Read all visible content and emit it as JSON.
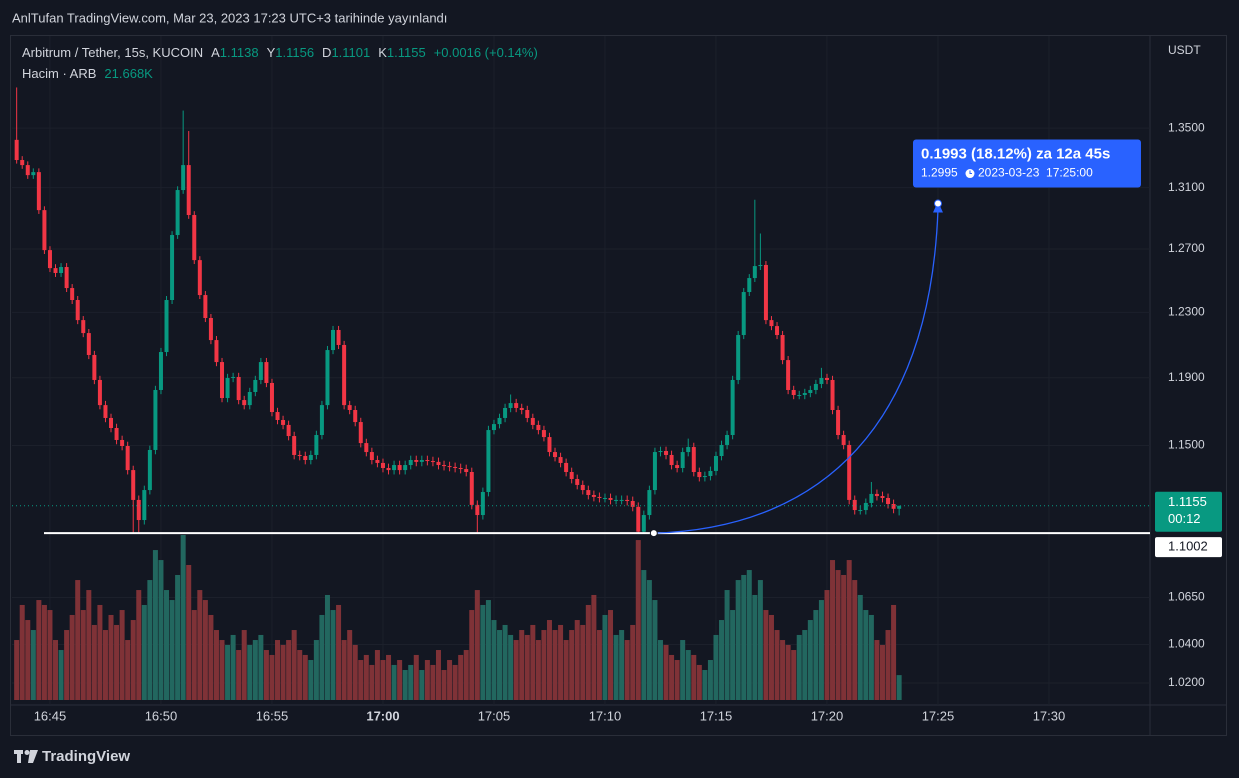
{
  "header": {
    "title": "AnlTufan TradingView.com, Mar 23, 2023 17:23 UTC+3 tarihinde yayınlandı"
  },
  "footer": {
    "brand": "TradingView"
  },
  "chart_data": {
    "type": "candlestick",
    "log_scale": true,
    "grid": true,
    "symbol": "Arbitrum / Tether, 15s, KUCOIN",
    "ohlc_letters": [
      "A",
      "Y",
      "D",
      "K"
    ],
    "change": "+0.0016 (+0.14%)",
    "volume_name": "Hacim · ARB",
    "volume_last_label": "21.668K",
    "currency": "USDT",
    "countdown": "00:12",
    "up_color": "#089981",
    "down_color": "#f23645",
    "volume_up_color": "#22675f",
    "volume_down_color": "#7f3237",
    "xlim": [
      1003.29,
      1054.55
    ],
    "ylim": [
      1.0087,
      1.415
    ],
    "xticks": [
      {
        "value": 1005,
        "label": "16:45"
      },
      {
        "value": 1010,
        "label": "16:50"
      },
      {
        "value": 1015,
        "label": "16:55"
      },
      {
        "value": 1020,
        "label": "17:00"
      },
      {
        "value": 1025,
        "label": "17:05"
      },
      {
        "value": 1030,
        "label": "17:10"
      },
      {
        "value": 1035,
        "label": "17:15"
      },
      {
        "value": 1040,
        "label": "17:20"
      },
      {
        "value": 1045,
        "label": "17:25"
      },
      {
        "value": 1050,
        "label": "17:30"
      }
    ],
    "yticks": [
      {
        "value": 1.35,
        "label": "1.3500"
      },
      {
        "value": 1.31,
        "label": "1.3100"
      },
      {
        "value": 1.27,
        "label": "1.2700"
      },
      {
        "value": 1.23,
        "label": "1.2300"
      },
      {
        "value": 1.19,
        "label": "1.1900"
      },
      {
        "value": 1.15,
        "label": "1.1500"
      },
      {
        "value": 1.065,
        "label": "1.0650"
      },
      {
        "value": 1.04,
        "label": "1.0400"
      },
      {
        "value": 1.02,
        "label": "1.0200"
      }
    ],
    "hline": 1.1002,
    "measure": {
      "from_x": 1032.2,
      "from_y": 1.1002,
      "to_x": 1045,
      "to_y": 1.2995,
      "text": "0.1993 (18.12%) za 12a 45s",
      "time": "2023-03-23  17:25:00"
    },
    "x": [
      1003.5,
      1003.75,
      1004,
      1004.25,
      1004.5,
      1004.75,
      1005,
      1005.25,
      1005.5,
      1005.75,
      1006,
      1006.25,
      1006.5,
      1006.75,
      1007,
      1007.25,
      1007.5,
      1007.75,
      1008,
      1008.25,
      1008.5,
      1008.75,
      1009,
      1009.25,
      1009.5,
      1009.75,
      1010,
      1010.25,
      1010.5,
      1010.75,
      1011,
      1011.25,
      1011.5,
      1011.75,
      1012,
      1012.25,
      1012.5,
      1012.75,
      1013,
      1013.25,
      1013.5,
      1013.75,
      1014,
      1014.25,
      1014.5,
      1014.75,
      1015,
      1015.25,
      1015.5,
      1015.75,
      1016,
      1016.25,
      1016.5,
      1016.75,
      1017,
      1017.25,
      1017.5,
      1017.75,
      1018,
      1018.25,
      1018.5,
      1018.75,
      1019,
      1019.25,
      1019.5,
      1019.75,
      1020,
      1020.25,
      1020.5,
      1020.75,
      1021,
      1021.25,
      1021.5,
      1021.75,
      1022,
      1022.25,
      1022.5,
      1022.75,
      1023,
      1023.25,
      1023.5,
      1023.75,
      1024,
      1024.25,
      1024.5,
      1024.75,
      1025,
      1025.25,
      1025.5,
      1025.75,
      1026,
      1026.25,
      1026.5,
      1026.75,
      1027,
      1027.25,
      1027.5,
      1027.75,
      1028,
      1028.25,
      1028.5,
      1028.75,
      1029,
      1029.25,
      1029.5,
      1029.75,
      1030,
      1030.25,
      1030.5,
      1030.75,
      1031,
      1031.25,
      1031.5,
      1031.75,
      1032,
      1032.25,
      1032.5,
      1032.75,
      1033,
      1033.25,
      1033.5,
      1033.75,
      1034,
      1034.25,
      1034.5,
      1034.75,
      1035,
      1035.25,
      1035.5,
      1035.75,
      1036,
      1036.25,
      1036.5,
      1036.75,
      1037,
      1037.25,
      1037.5,
      1037.75,
      1038,
      1038.25,
      1038.5,
      1038.75,
      1039,
      1039.25,
      1039.5,
      1039.75,
      1040,
      1040.25,
      1040.5,
      1040.75,
      1041,
      1041.25,
      1041.5,
      1041.75,
      1042,
      1042.25,
      1042.5,
      1042.75,
      1043,
      1043.25
    ],
    "ohlc": [
      [
        1.342,
        1.378,
        1.326,
        1.3284
      ],
      [
        1.3284,
        1.331,
        1.3225,
        1.325
      ],
      [
        1.325,
        1.3275,
        1.3158,
        1.3183
      ],
      [
        1.3183,
        1.3228,
        1.3158,
        1.3203
      ],
      [
        1.3203,
        1.3228,
        1.2927,
        1.2952
      ],
      [
        1.2952,
        1.2977,
        1.2668,
        1.2693
      ],
      [
        1.2693,
        1.2718,
        1.2553,
        1.2578
      ],
      [
        1.2578,
        1.2603,
        1.2522,
        1.2547
      ],
      [
        1.2547,
        1.261,
        1.2522,
        1.2585
      ],
      [
        1.2585,
        1.261,
        1.2427,
        1.2452
      ],
      [
        1.2452,
        1.2477,
        1.2352,
        1.2377
      ],
      [
        1.2377,
        1.2402,
        1.2227,
        1.2252
      ],
      [
        1.2252,
        1.2277,
        1.2147,
        1.2172
      ],
      [
        1.2172,
        1.2197,
        1.2013,
        1.2038
      ],
      [
        1.2038,
        1.2063,
        1.1862,
        1.1887
      ],
      [
        1.1887,
        1.1912,
        1.1712,
        1.1737
      ],
      [
        1.1737,
        1.1762,
        1.1636,
        1.1661
      ],
      [
        1.1661,
        1.1686,
        1.1577,
        1.1602
      ],
      [
        1.1602,
        1.1627,
        1.1507,
        1.1532
      ],
      [
        1.1532,
        1.1557,
        1.1472,
        1.1497
      ],
      [
        1.1497,
        1.1522,
        1.1333,
        1.1358
      ],
      [
        1.1358,
        1.1383,
        1.1002,
        1.1188
      ],
      [
        1.1188,
        1.1213,
        1.1002,
        1.1075
      ],
      [
        1.1075,
        1.1269,
        1.105,
        1.1244
      ],
      [
        1.1244,
        1.1499,
        1.1219,
        1.1474
      ],
      [
        1.1474,
        1.1852,
        1.1449,
        1.1827
      ],
      [
        1.1827,
        1.2081,
        1.1802,
        1.2056
      ],
      [
        1.2056,
        1.2402,
        1.2031,
        1.2377
      ],
      [
        1.2377,
        1.2815,
        1.2352,
        1.279
      ],
      [
        1.279,
        1.3109,
        1.2765,
        1.3084
      ],
      [
        1.3084,
        1.362,
        1.3059,
        1.325
      ],
      [
        1.325,
        1.348,
        1.2895,
        1.292
      ],
      [
        1.292,
        1.2945,
        1.2604,
        1.2629
      ],
      [
        1.2629,
        1.2654,
        1.2383,
        1.2408
      ],
      [
        1.2408,
        1.2433,
        1.224,
        1.2265
      ],
      [
        1.2265,
        1.229,
        1.2104,
        1.2129
      ],
      [
        1.2129,
        1.2154,
        1.197,
        1.1995
      ],
      [
        1.1995,
        1.202,
        1.1754,
        1.1779
      ],
      [
        1.1779,
        1.1924,
        1.1754,
        1.1899
      ],
      [
        1.1899,
        1.193,
        1.1874,
        1.1905
      ],
      [
        1.1905,
        1.193,
        1.1742,
        1.1767
      ],
      [
        1.1767,
        1.1792,
        1.1712,
        1.1737
      ],
      [
        1.1737,
        1.184,
        1.1712,
        1.1815
      ],
      [
        1.1815,
        1.1912,
        1.179,
        1.1887
      ],
      [
        1.1887,
        1.202,
        1.1862,
        1.1995
      ],
      [
        1.1995,
        1.202,
        1.1844,
        1.1869
      ],
      [
        1.1869,
        1.1894,
        1.1671,
        1.1696
      ],
      [
        1.1696,
        1.1721,
        1.1624,
        1.1649
      ],
      [
        1.1649,
        1.1674,
        1.1595,
        1.162
      ],
      [
        1.162,
        1.1645,
        1.153,
        1.1555
      ],
      [
        1.1555,
        1.158,
        1.142,
        1.1445
      ],
      [
        1.1445,
        1.147,
        1.1414,
        1.1439
      ],
      [
        1.1439,
        1.1464,
        1.1391,
        1.1416
      ],
      [
        1.1416,
        1.147,
        1.1391,
        1.1445
      ],
      [
        1.1445,
        1.1586,
        1.142,
        1.1561
      ],
      [
        1.1561,
        1.1762,
        1.1536,
        1.1737
      ],
      [
        1.1737,
        1.2093,
        1.1712,
        1.2068
      ],
      [
        1.2068,
        1.2216,
        1.2043,
        1.2191
      ],
      [
        1.2191,
        1.2216,
        1.2074,
        1.2099
      ],
      [
        1.2099,
        1.2124,
        1.1712,
        1.1737
      ],
      [
        1.1737,
        1.1762,
        1.1683,
        1.1708
      ],
      [
        1.1708,
        1.1733,
        1.1612,
        1.1637
      ],
      [
        1.1637,
        1.1662,
        1.1489,
        1.1514
      ],
      [
        1.1514,
        1.1539,
        1.1437,
        1.1462
      ],
      [
        1.1462,
        1.1487,
        1.1391,
        1.1416
      ],
      [
        1.1416,
        1.1441,
        1.1374,
        1.1399
      ],
      [
        1.1399,
        1.1424,
        1.1345,
        1.137
      ],
      [
        1.137,
        1.1395,
        1.1333,
        1.1358
      ],
      [
        1.1358,
        1.1412,
        1.1333,
        1.1387
      ],
      [
        1.1387,
        1.1412,
        1.1333,
        1.1358
      ],
      [
        1.1358,
        1.1412,
        1.1333,
        1.1387
      ],
      [
        1.1387,
        1.1441,
        1.1362,
        1.1416
      ],
      [
        1.1416,
        1.1441,
        1.138,
        1.1405
      ],
      [
        1.1405,
        1.1441,
        1.138,
        1.1416
      ],
      [
        1.1416,
        1.1441,
        1.1385,
        1.141
      ],
      [
        1.141,
        1.1435,
        1.138,
        1.1405
      ],
      [
        1.1405,
        1.143,
        1.1362,
        1.1387
      ],
      [
        1.1387,
        1.1412,
        1.1356,
        1.1381
      ],
      [
        1.1381,
        1.1406,
        1.1351,
        1.1376
      ],
      [
        1.1376,
        1.1401,
        1.1345,
        1.137
      ],
      [
        1.137,
        1.1395,
        1.1339,
        1.1364
      ],
      [
        1.1364,
        1.1389,
        1.1322,
        1.1347
      ],
      [
        1.1347,
        1.1372,
        1.1135,
        1.116
      ],
      [
        1.116,
        1.1185,
        1.1002,
        1.1103
      ],
      [
        1.1103,
        1.1258,
        1.1078,
        1.1233
      ],
      [
        1.1233,
        1.1615,
        1.1208,
        1.159
      ],
      [
        1.159,
        1.165,
        1.1565,
        1.1625
      ],
      [
        1.1625,
        1.1686,
        1.16,
        1.1661
      ],
      [
        1.1661,
        1.1745,
        1.1636,
        1.172
      ],
      [
        1.172,
        1.18,
        1.1695,
        1.1749
      ],
      [
        1.1749,
        1.1774,
        1.1695,
        1.172
      ],
      [
        1.172,
        1.1745,
        1.1683,
        1.1708
      ],
      [
        1.1708,
        1.1733,
        1.1636,
        1.1661
      ],
      [
        1.1661,
        1.1686,
        1.1595,
        1.162
      ],
      [
        1.162,
        1.1645,
        1.1565,
        1.159
      ],
      [
        1.159,
        1.1615,
        1.1524,
        1.1549
      ],
      [
        1.1549,
        1.1574,
        1.1437,
        1.1462
      ],
      [
        1.1462,
        1.1487,
        1.1408,
        1.1433
      ],
      [
        1.1433,
        1.1458,
        1.1374,
        1.1399
      ],
      [
        1.1399,
        1.1424,
        1.1322,
        1.1347
      ],
      [
        1.1347,
        1.1372,
        1.1282,
        1.1307
      ],
      [
        1.1307,
        1.1332,
        1.1248,
        1.1273
      ],
      [
        1.1273,
        1.1298,
        1.1219,
        1.1244
      ],
      [
        1.1244,
        1.1269,
        1.1191,
        1.1216
      ],
      [
        1.1216,
        1.1241,
        1.118,
        1.1205
      ],
      [
        1.1205,
        1.123,
        1.1174,
        1.1199
      ],
      [
        1.1199,
        1.1224,
        1.1174,
        1.1199
      ],
      [
        1.1199,
        1.1224,
        1.1163,
        1.1188
      ],
      [
        1.1188,
        1.1213,
        1.1163,
        1.1188
      ],
      [
        1.1188,
        1.1213,
        1.1163,
        1.1188
      ],
      [
        1.1188,
        1.1213,
        1.1157,
        1.1182
      ],
      [
        1.1182,
        1.1207,
        1.1124,
        1.1149
      ],
      [
        1.1149,
        1.1174,
        1.1002,
        1.101
      ],
      [
        1.101,
        1.1128,
        1.1002,
        1.1103
      ],
      [
        1.1103,
        1.1269,
        1.1078,
        1.1244
      ],
      [
        1.1244,
        1.1487,
        1.1219,
        1.1462
      ],
      [
        1.1462,
        1.1493,
        1.1437,
        1.1468
      ],
      [
        1.1468,
        1.1493,
        1.142,
        1.1445
      ],
      [
        1.1445,
        1.147,
        1.1362,
        1.1387
      ],
      [
        1.1387,
        1.1412,
        1.1345,
        1.137
      ],
      [
        1.137,
        1.1487,
        1.1345,
        1.1462
      ],
      [
        1.1462,
        1.154,
        1.1437,
        1.1491
      ],
      [
        1.1491,
        1.1516,
        1.1322,
        1.1347
      ],
      [
        1.1347,
        1.1372,
        1.1293,
        1.1318
      ],
      [
        1.1318,
        1.1349,
        1.1293,
        1.1324
      ],
      [
        1.1324,
        1.1378,
        1.1299,
        1.1353
      ],
      [
        1.1353,
        1.1464,
        1.1328,
        1.1439
      ],
      [
        1.1439,
        1.1528,
        1.1414,
        1.1503
      ],
      [
        1.1503,
        1.1586,
        1.1478,
        1.1561
      ],
      [
        1.1561,
        1.1912,
        1.1536,
        1.1887
      ],
      [
        1.1887,
        1.2185,
        1.1862,
        1.216
      ],
      [
        1.216,
        1.2452,
        1.2135,
        1.2427
      ],
      [
        1.2427,
        1.254,
        1.2402,
        1.2515
      ],
      [
        1.2515,
        1.302,
        1.249,
        1.2591
      ],
      [
        1.2591,
        1.28,
        1.2566,
        1.2598
      ],
      [
        1.2598,
        1.2623,
        1.2227,
        1.2252
      ],
      [
        1.2252,
        1.2277,
        1.219,
        1.2215
      ],
      [
        1.2215,
        1.224,
        1.2135,
        1.216
      ],
      [
        1.216,
        1.2185,
        1.1982,
        1.2007
      ],
      [
        1.2007,
        1.2032,
        1.1802,
        1.1827
      ],
      [
        1.1827,
        1.1852,
        1.1772,
        1.1797
      ],
      [
        1.1797,
        1.1822,
        1.1772,
        1.1797
      ],
      [
        1.1797,
        1.1834,
        1.1772,
        1.1809
      ],
      [
        1.1809,
        1.1852,
        1.1784,
        1.1827
      ],
      [
        1.1827,
        1.1888,
        1.1802,
        1.1863
      ],
      [
        1.1863,
        1.196,
        1.1838,
        1.1899
      ],
      [
        1.1899,
        1.1924,
        1.1862,
        1.1887
      ],
      [
        1.1887,
        1.1912,
        1.1683,
        1.1708
      ],
      [
        1.1708,
        1.1733,
        1.1536,
        1.1561
      ],
      [
        1.1561,
        1.1586,
        1.1478,
        1.1503
      ],
      [
        1.1503,
        1.1528,
        1.1163,
        1.1188
      ],
      [
        1.1188,
        1.1213,
        1.1106,
        1.1131
      ],
      [
        1.1131,
        1.1156,
        1.1106,
        1.1131
      ],
      [
        1.1131,
        1.1196,
        1.1106,
        1.1171
      ],
      [
        1.1171,
        1.129,
        1.1146,
        1.1222
      ],
      [
        1.1222,
        1.1247,
        1.1185,
        1.121
      ],
      [
        1.121,
        1.1235,
        1.1174,
        1.1199
      ],
      [
        1.1199,
        1.1224,
        1.114,
        1.1165
      ],
      [
        1.1165,
        1.119,
        1.1113,
        1.1138
      ],
      [
        1.1138,
        1.1156,
        1.1101,
        1.1155
      ]
    ],
    "volume": [
      52.2,
      82.7,
      69.6,
      60.9,
      87.0,
      82.7,
      78.3,
      52.2,
      43.5,
      60.9,
      74.0,
      104.4,
      78.3,
      95.7,
      65.3,
      82.7,
      60.9,
      74.0,
      65.3,
      78.3,
      52.2,
      69.6,
      95.7,
      82.7,
      104.4,
      130.5,
      121.8,
      95.7,
      87.0,
      108.8,
      143.6,
      117.5,
      78.3,
      95.7,
      87.0,
      74.0,
      60.9,
      52.2,
      47.9,
      56.6,
      43.5,
      60.9,
      47.9,
      52.2,
      56.6,
      43.5,
      39.2,
      52.2,
      47.9,
      52.2,
      60.9,
      43.5,
      39.2,
      34.8,
      52.2,
      74.0,
      91.4,
      78.3,
      82.7,
      52.2,
      60.9,
      47.9,
      34.8,
      39.2,
      30.5,
      43.5,
      34.8,
      39.2,
      30.5,
      34.8,
      26.1,
      30.5,
      39.2,
      26.1,
      34.8,
      30.5,
      43.5,
      26.1,
      34.8,
      30.5,
      39.2,
      43.5,
      78.3,
      95.7,
      82.7,
      87.0,
      69.6,
      60.9,
      65.3,
      56.6,
      52.2,
      60.9,
      56.6,
      65.3,
      52.2,
      60.9,
      69.6,
      60.9,
      65.3,
      52.2,
      60.9,
      69.6,
      65.3,
      82.7,
      91.4,
      60.9,
      74.0,
      78.3,
      56.6,
      60.9,
      52.2,
      65.3,
      139.2,
      113.1,
      104.4,
      87.0,
      52.2,
      47.9,
      39.2,
      34.8,
      52.2,
      43.5,
      39.2,
      30.5,
      26.1,
      34.8,
      56.6,
      69.6,
      95.7,
      78.3,
      104.4,
      108.8,
      113.1,
      91.4,
      104.4,
      78.3,
      74.0,
      60.9,
      52.2,
      47.9,
      43.5,
      56.6,
      60.9,
      69.6,
      78.3,
      87.0,
      95.7,
      121.8,
      113.1,
      108.8,
      121.8,
      104.4,
      91.4,
      78.3,
      74.0,
      52.2,
      47.9,
      60.9,
      82.7,
      21.668
    ]
  }
}
